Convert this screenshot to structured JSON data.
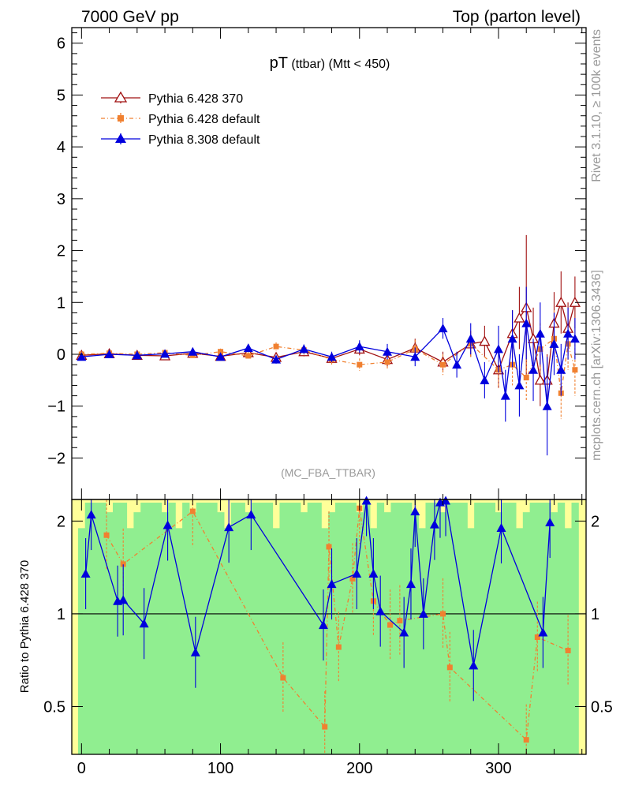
{
  "header": {
    "left": "7000 GeV pp",
    "right": "Top (parton level)"
  },
  "side_labels": {
    "rivet": "Rivet 3.1.10, ≥ 100k events",
    "mcplots": "mcplots.cern.ch [arXiv:1306.3436]"
  },
  "chart_data": [
    {
      "type": "scatter",
      "panel": "main",
      "title_main": "pT",
      "title_sub": " (ttbar) (Mtt < 450)",
      "annotation": "(MC_FBA_TTBAR)",
      "xlabel": "",
      "ylabel": "",
      "xlim": [
        -7,
        363
      ],
      "ylim": [
        -2.8,
        6.3
      ],
      "yticks": [
        -2,
        -1,
        0,
        1,
        2,
        3,
        4,
        5,
        6
      ],
      "ytick_labels": [
        "−2",
        "−1",
        "0",
        "1",
        "2",
        "3",
        "4",
        "5",
        "6"
      ],
      "legend_position": "top-left",
      "series": [
        {
          "name": "Pythia 6.428 370",
          "color": "#a01010",
          "marker": "open-triangle",
          "x": [
            0,
            20,
            40,
            60,
            80,
            100,
            120,
            140,
            160,
            180,
            200,
            220,
            240,
            260,
            280,
            290,
            300,
            310,
            315,
            320,
            325,
            330,
            335,
            340,
            345,
            350,
            355
          ],
          "y": [
            -0.02,
            0.01,
            -0.02,
            -0.03,
            0.02,
            -0.04,
            0.03,
            -0.06,
            0.05,
            -0.08,
            0.1,
            -0.1,
            0.12,
            -0.15,
            0.2,
            0.25,
            -0.3,
            0.4,
            0.7,
            0.9,
            0.3,
            -0.5,
            -0.5,
            0.6,
            1.0,
            0.5,
            1.0
          ],
          "err": [
            0.03,
            0.04,
            0.04,
            0.05,
            0.05,
            0.06,
            0.07,
            0.08,
            0.09,
            0.1,
            0.12,
            0.15,
            0.18,
            0.2,
            0.25,
            0.3,
            0.35,
            0.45,
            0.6,
            1.4,
            0.6,
            0.5,
            0.5,
            0.6,
            0.6,
            0.5,
            0.5
          ]
        },
        {
          "name": "Pythia 6.428 default",
          "color": "#f08030",
          "marker": "filled-square",
          "x": [
            0,
            20,
            40,
            60,
            80,
            100,
            120,
            140,
            160,
            180,
            200,
            220,
            240,
            260,
            280,
            300,
            310,
            320,
            330,
            340,
            345,
            350,
            355
          ],
          "y": [
            0.0,
            0.02,
            0.0,
            0.03,
            -0.02,
            0.05,
            -0.03,
            0.15,
            0.08,
            -0.1,
            -0.2,
            -0.15,
            0.1,
            -0.2,
            0.2,
            -0.3,
            -0.2,
            -0.45,
            0.1,
            0.3,
            -0.75,
            0.2,
            -0.3
          ],
          "err": [
            0.03,
            0.04,
            0.04,
            0.05,
            0.05,
            0.06,
            0.07,
            0.08,
            0.09,
            0.1,
            0.12,
            0.15,
            0.18,
            0.2,
            0.25,
            0.35,
            0.4,
            0.45,
            0.5,
            0.55,
            0.5,
            0.5,
            0.5
          ]
        },
        {
          "name": "Pythia 8.308 default",
          "color": "#0000dd",
          "marker": "filled-triangle",
          "x": [
            0,
            20,
            40,
            60,
            80,
            100,
            120,
            140,
            160,
            180,
            200,
            220,
            240,
            260,
            270,
            280,
            290,
            300,
            305,
            310,
            315,
            320,
            325,
            330,
            335,
            340,
            345,
            350,
            355
          ],
          "y": [
            -0.05,
            0.0,
            -0.02,
            0.01,
            0.05,
            -0.05,
            0.12,
            -0.1,
            0.1,
            -0.05,
            0.15,
            0.05,
            -0.05,
            0.5,
            -0.2,
            0.3,
            -0.5,
            0.1,
            -0.8,
            0.3,
            -0.6,
            0.6,
            -0.3,
            0.4,
            -1.0,
            0.2,
            -0.3,
            0.4,
            0.3
          ],
          "err": [
            0.03,
            0.04,
            0.04,
            0.05,
            0.05,
            0.06,
            0.07,
            0.08,
            0.09,
            0.1,
            0.12,
            0.15,
            0.18,
            0.2,
            0.25,
            0.3,
            0.35,
            0.45,
            0.5,
            0.55,
            0.6,
            0.7,
            0.6,
            0.6,
            0.95,
            0.6,
            0.5,
            0.5,
            0.4
          ]
        }
      ]
    },
    {
      "type": "scatter",
      "panel": "ratio",
      "xlabel": "",
      "ylabel": "Ratio to Pythia 6.428 370",
      "xlim": [
        -7,
        363
      ],
      "ylim": [
        0.35,
        2.35
      ],
      "yticks": [
        0.5,
        1,
        2
      ],
      "ytick_labels": [
        "0.5",
        "1",
        "2"
      ],
      "xticks": [
        0,
        100,
        200,
        300
      ],
      "xtick_labels": [
        "0",
        "100",
        "200",
        "300"
      ],
      "reference_line": 1,
      "band_colors": {
        "inner": "#90ee90",
        "outer": "#ffff99"
      },
      "series": [
        {
          "name": "Pythia 6.428 default",
          "color": "#f08030",
          "marker": "filled-square",
          "x": [
            18,
            30,
            80,
            145,
            175,
            178,
            185,
            195,
            200,
            210,
            222,
            229,
            260,
            265,
            320,
            328,
            350
          ],
          "y": [
            1.8,
            1.45,
            2.15,
            0.62,
            0.43,
            1.65,
            0.78,
            1.3,
            2.2,
            1.1,
            0.92,
            0.95,
            1.0,
            0.67,
            0.39,
            0.84,
            0.76
          ]
        },
        {
          "name": "Pythia 8.308 default",
          "color": "#0000dd",
          "marker": "filled-triangle",
          "x": [
            3,
            7,
            26,
            30,
            45,
            62,
            82,
            106,
            122,
            174,
            180,
            198,
            205,
            210,
            215,
            232,
            237,
            240,
            246,
            254,
            258,
            262,
            282,
            302,
            332,
            337
          ],
          "y": [
            1.35,
            2.1,
            1.1,
            1.11,
            0.93,
            1.94,
            0.75,
            1.91,
            2.1,
            0.92,
            1.25,
            1.35,
            2.33,
            1.35,
            1.02,
            0.87,
            1.25,
            2.15,
            1.0,
            1.95,
            2.3,
            2.33,
            0.68,
            1.9,
            0.87,
            1.98
          ]
        }
      ]
    }
  ]
}
